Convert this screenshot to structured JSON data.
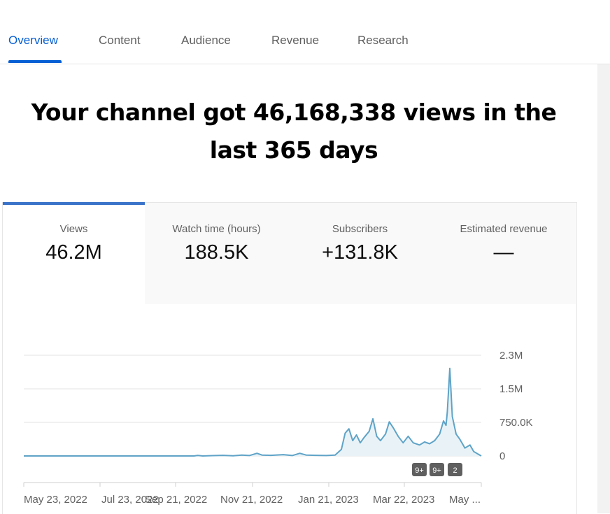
{
  "tabs": [
    {
      "label": "Overview",
      "active": true
    },
    {
      "label": "Content"
    },
    {
      "label": "Audience"
    },
    {
      "label": "Revenue"
    },
    {
      "label": "Research"
    }
  ],
  "headline": "Your channel got 46,168,338 views in the last 365 days",
  "metrics": [
    {
      "label": "Views",
      "value": "46.2M"
    },
    {
      "label": "Watch time (hours)",
      "value": "188.5K"
    },
    {
      "label": "Subscribers",
      "value": "+131.8K"
    },
    {
      "label": "Estimated revenue",
      "value": "—"
    }
  ],
  "colors": {
    "accent": "#065fd4",
    "line": "#5fa3c7",
    "area": "#e9f3f7"
  },
  "chart_data": {
    "type": "area",
    "series": [
      {
        "values_note_excluded": null,
        "values": [
          [
            "2022-05-23",
            0
          ],
          [
            "2022-06-10",
            0
          ],
          [
            "2022-07-10",
            0
          ],
          [
            "2022-08-10",
            0
          ],
          [
            "2022-09-10",
            0
          ],
          [
            "2022-10-05",
            0
          ],
          [
            "2022-10-08",
            12000
          ],
          [
            "2022-10-12",
            0
          ],
          [
            "2022-10-20",
            8000
          ],
          [
            "2022-10-28",
            15000
          ],
          [
            "2022-11-05",
            5000
          ],
          [
            "2022-11-12",
            20000
          ],
          [
            "2022-11-18",
            10000
          ],
          [
            "2022-11-24",
            60000
          ],
          [
            "2022-11-28",
            20000
          ],
          [
            "2022-12-05",
            15000
          ],
          [
            "2022-12-15",
            30000
          ],
          [
            "2022-12-22",
            10000
          ],
          [
            "2022-12-28",
            60000
          ],
          [
            "2023-01-02",
            20000
          ],
          [
            "2023-01-10",
            15000
          ],
          [
            "2023-01-18",
            10000
          ],
          [
            "2023-01-25",
            20000
          ],
          [
            "2023-01-30",
            150000
          ],
          [
            "2023-02-02",
            520000
          ],
          [
            "2023-02-05",
            620000
          ],
          [
            "2023-02-08",
            350000
          ],
          [
            "2023-02-11",
            480000
          ],
          [
            "2023-02-14",
            300000
          ],
          [
            "2023-02-17",
            420000
          ],
          [
            "2023-02-21",
            560000
          ],
          [
            "2023-02-24",
            850000
          ],
          [
            "2023-02-27",
            450000
          ],
          [
            "2023-03-02",
            350000
          ],
          [
            "2023-03-06",
            500000
          ],
          [
            "2023-03-09",
            780000
          ],
          [
            "2023-03-12",
            650000
          ],
          [
            "2023-03-16",
            450000
          ],
          [
            "2023-03-20",
            300000
          ],
          [
            "2023-03-24",
            450000
          ],
          [
            "2023-03-28",
            300000
          ],
          [
            "2023-04-02",
            250000
          ],
          [
            "2023-04-06",
            320000
          ],
          [
            "2023-04-10",
            280000
          ],
          [
            "2023-04-14",
            350000
          ],
          [
            "2023-04-18",
            500000
          ],
          [
            "2023-04-21",
            800000
          ],
          [
            "2023-04-23",
            700000
          ],
          [
            "2023-04-24",
            1000000
          ],
          [
            "2023-04-26",
            2000000
          ],
          [
            "2023-04-28",
            900000
          ],
          [
            "2023-05-01",
            500000
          ],
          [
            "2023-05-04",
            380000
          ],
          [
            "2023-05-08",
            180000
          ],
          [
            "2023-05-12",
            250000
          ],
          [
            "2023-05-15",
            100000
          ],
          [
            "2023-05-18",
            50000
          ],
          [
            "2023-05-21",
            0
          ]
        ]
      }
    ],
    "xlabels": [
      "May 23, 2022",
      "Jul 23, 2022",
      "Sep 21, 2022",
      "Nov 21, 2022",
      "Jan 21, 2023",
      "Mar 22, 2023",
      "May ..."
    ],
    "ytick_labels": [
      "2.3M",
      "1.5M",
      "750.0K",
      "0"
    ],
    "ylim": [
      0,
      2300000
    ],
    "annotations": [
      "9+",
      "9+",
      "2"
    ],
    "grid": true
  }
}
